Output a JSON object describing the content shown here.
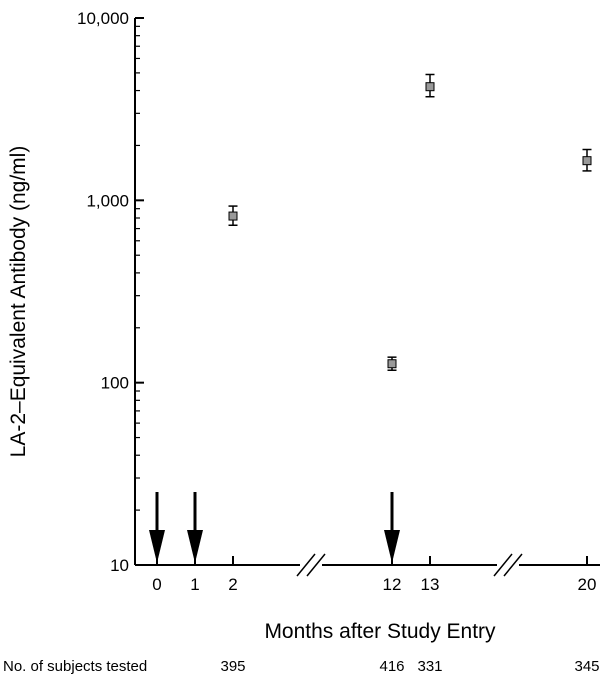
{
  "chart_data": {
    "type": "scatter",
    "title": "",
    "xlabel": "Months after Study Entry",
    "ylabel": "LA-2–Equivalent Antibody (ng/ml)",
    "y_scale": "log",
    "ylim": [
      10,
      10000
    ],
    "yticks": [
      {
        "value": 10,
        "label": "10"
      },
      {
        "value": 100,
        "label": "100"
      },
      {
        "value": 1000,
        "label": "1,000"
      },
      {
        "value": 10000,
        "label": "10,000"
      }
    ],
    "xticks": [
      {
        "value": 0,
        "label": "0"
      },
      {
        "value": 1,
        "label": "1"
      },
      {
        "value": 2,
        "label": "2"
      },
      {
        "value": 12,
        "label": "12"
      },
      {
        "value": 13,
        "label": "13"
      },
      {
        "value": 20,
        "label": "20"
      }
    ],
    "axis_breaks": [
      [
        2,
        12
      ],
      [
        13,
        20
      ]
    ],
    "series": [
      {
        "points": [
          {
            "x": 2,
            "y": 820,
            "err_low": 730,
            "err_high": 930
          },
          {
            "x": 12,
            "y": 127,
            "err_low": 117,
            "err_high": 138
          },
          {
            "x": 13,
            "y": 4200,
            "err_low": 3700,
            "err_high": 4900
          },
          {
            "x": 20,
            "y": 1650,
            "err_low": 1450,
            "err_high": 1900
          }
        ],
        "marker": "square",
        "color": "#999999"
      }
    ],
    "arrows_at_x": [
      0,
      1,
      12
    ],
    "subjects": {
      "label": "No. of subjects tested",
      "counts": [
        {
          "x": 2,
          "n": "395"
        },
        {
          "x": 12,
          "n": "416"
        },
        {
          "x": 13,
          "n": "331"
        },
        {
          "x": 20,
          "n": "345"
        }
      ]
    }
  }
}
